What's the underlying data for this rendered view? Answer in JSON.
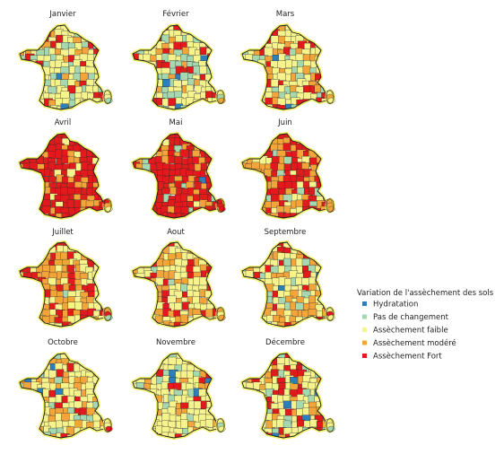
{
  "palette": {
    "Hydratation": "#2c7fb8",
    "Pas de changement": "#a6d8b0",
    "Assèchement faible": "#f6f38c",
    "Assèchement modéré": "#f4a53a",
    "Assèchement Fort": "#e31a1c"
  },
  "legend": {
    "title": "Variation de l'assèchement des sols",
    "items": [
      {
        "label": "Hydratation",
        "color": "#2c7fb8"
      },
      {
        "label": "Pas de changement",
        "color": "#a6d8b0"
      },
      {
        "label": "Assèchement faible",
        "color": "#f6f38c"
      },
      {
        "label": "Assèchement modéré",
        "color": "#f4a53a"
      },
      {
        "label": "Assèchement Fort",
        "color": "#e31a1c"
      }
    ]
  },
  "months": [
    {
      "name": "Janvier",
      "mix": {
        "Hydratation": 0.04,
        "Pas de changement": 0.2,
        "Assèchement faible": 0.55,
        "Assèchement modéré": 0.1,
        "Assèchement Fort": 0.11
      }
    },
    {
      "name": "Février",
      "mix": {
        "Hydratation": 0.03,
        "Pas de changement": 0.22,
        "Assèchement faible": 0.5,
        "Assèchement modéré": 0.1,
        "Assèchement Fort": 0.15
      }
    },
    {
      "name": "Mars",
      "mix": {
        "Hydratation": 0.02,
        "Pas de changement": 0.12,
        "Assèchement faible": 0.5,
        "Assèchement modéré": 0.14,
        "Assèchement Fort": 0.22
      }
    },
    {
      "name": "Avril",
      "mix": {
        "Hydratation": 0.01,
        "Pas de changement": 0.02,
        "Assèchement faible": 0.07,
        "Assèchement modéré": 0.2,
        "Assèchement Fort": 0.7
      }
    },
    {
      "name": "Mai",
      "mix": {
        "Hydratation": 0.01,
        "Pas de changement": 0.02,
        "Assèchement faible": 0.05,
        "Assèchement modéré": 0.22,
        "Assèchement Fort": 0.7
      }
    },
    {
      "name": "Juin",
      "mix": {
        "Hydratation": 0.01,
        "Pas de changement": 0.04,
        "Assèchement faible": 0.25,
        "Assèchement modéré": 0.35,
        "Assèchement Fort": 0.35
      }
    },
    {
      "name": "Juillet",
      "mix": {
        "Hydratation": 0.01,
        "Pas de changement": 0.05,
        "Assèchement faible": 0.4,
        "Assèchement modéré": 0.34,
        "Assèchement Fort": 0.2
      }
    },
    {
      "name": "Aout",
      "mix": {
        "Hydratation": 0.01,
        "Pas de changement": 0.04,
        "Assèchement faible": 0.42,
        "Assèchement modéré": 0.33,
        "Assèchement Fort": 0.2
      }
    },
    {
      "name": "Septembre",
      "mix": {
        "Hydratation": 0.02,
        "Pas de changement": 0.14,
        "Assèchement faible": 0.44,
        "Assèchement modéré": 0.25,
        "Assèchement Fort": 0.15
      }
    },
    {
      "name": "Octobre",
      "mix": {
        "Hydratation": 0.02,
        "Pas de changement": 0.1,
        "Assèchement faible": 0.6,
        "Assèchement modéré": 0.18,
        "Assèchement Fort": 0.1
      }
    },
    {
      "name": "Novembre",
      "mix": {
        "Hydratation": 0.02,
        "Pas de changement": 0.14,
        "Assèchement faible": 0.62,
        "Assèchement modéré": 0.14,
        "Assèchement Fort": 0.08
      }
    },
    {
      "name": "Décembre",
      "mix": {
        "Hydratation": 0.03,
        "Pas de changement": 0.2,
        "Assèchement faible": 0.47,
        "Assèchement modéré": 0.12,
        "Assèchement Fort": 0.18
      }
    }
  ]
}
